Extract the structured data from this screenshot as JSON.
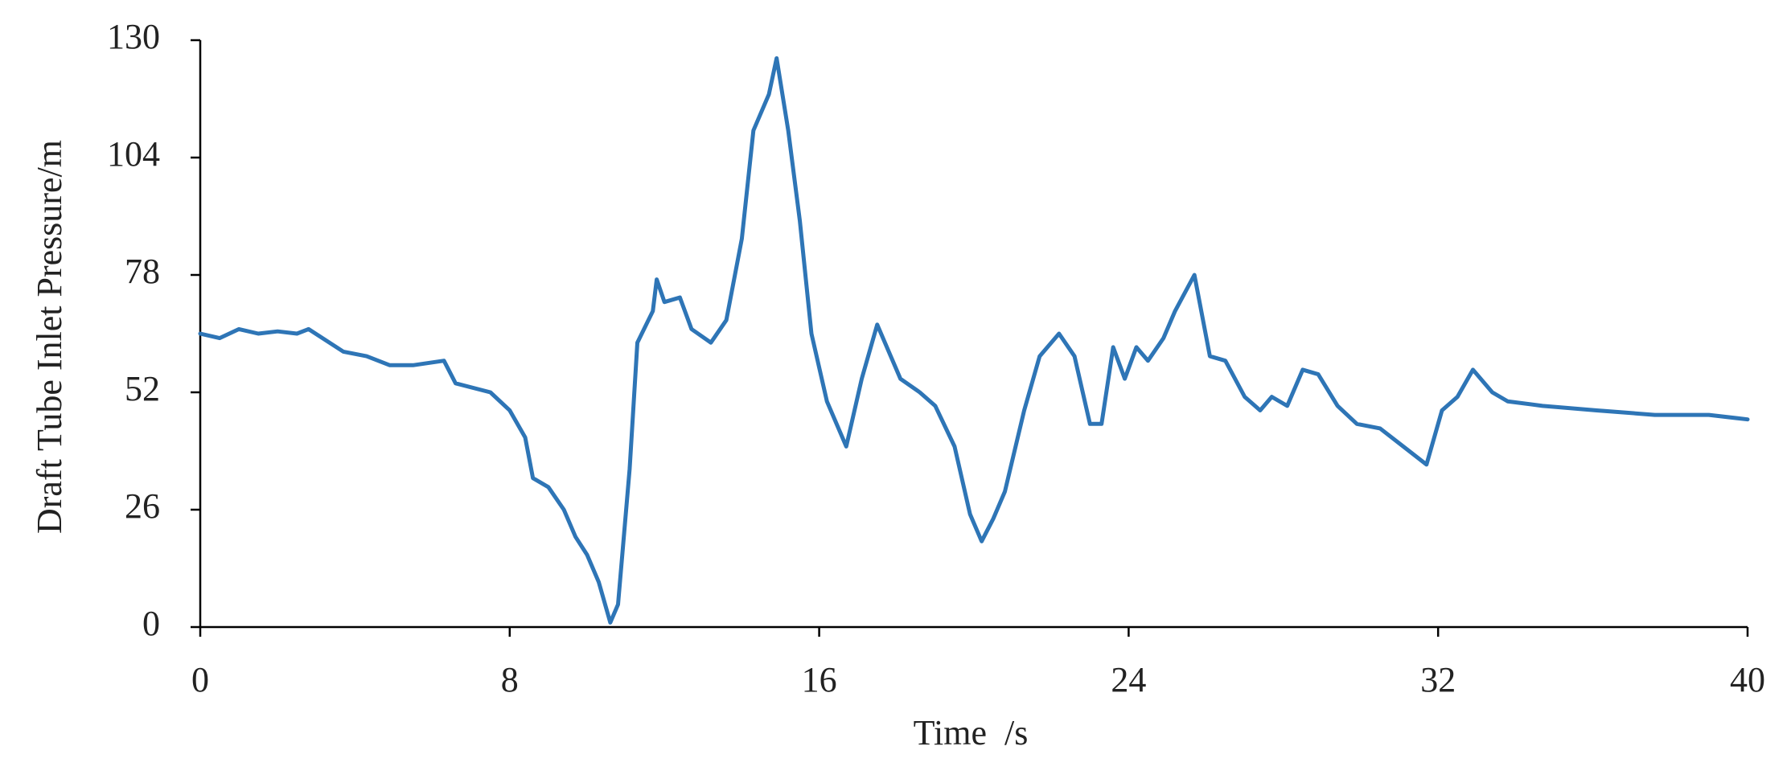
{
  "chart_data": {
    "type": "line",
    "xlabel": "Time  /s",
    "ylabel": "Draft Tube Inlet Pressure/m",
    "x": [
      0,
      0.5,
      1,
      1.5,
      2,
      2.5,
      2.8,
      3.7,
      4.3,
      4.9,
      5.5,
      6.3,
      6.6,
      7.5,
      8,
      8.4,
      8.6,
      9,
      9.4,
      9.7,
      10,
      10.3,
      10.6,
      10.8,
      11.1,
      11.3,
      11.7,
      11.8,
      12,
      12.4,
      12.7,
      13.2,
      13.6,
      14,
      14.3,
      14.7,
      14.9,
      15.2,
      15.5,
      15.8,
      16.2,
      16.7,
      17.1,
      17.5,
      17.7,
      18.1,
      18.6,
      19,
      19.5,
      19.9,
      20.2,
      20.5,
      20.8,
      21.3,
      21.7,
      22.2,
      22.6,
      23,
      23.3,
      23.6,
      23.9,
      24.2,
      24.5,
      24.9,
      25.2,
      25.7,
      26.1,
      26.5,
      27,
      27.4,
      27.7,
      28.1,
      28.5,
      28.9,
      29.4,
      29.9,
      30.5,
      31.1,
      31.7,
      32.1,
      32.5,
      32.9,
      33.4,
      33.8,
      34.7,
      36.1,
      37.6,
      39,
      40
    ],
    "series": [
      {
        "name": "Draft Tube Inlet Pressure",
        "color": "#2e75b6",
        "values": [
          65,
          64,
          66,
          65,
          65.5,
          65,
          66,
          61,
          60,
          58,
          58,
          59,
          54,
          52,
          48,
          42,
          33,
          31,
          26,
          20,
          16,
          10,
          1,
          5,
          35,
          63,
          70,
          77,
          72,
          73,
          66,
          63,
          68,
          86,
          110,
          118,
          126,
          110,
          90,
          65,
          50,
          40,
          55,
          67,
          63,
          55,
          52,
          49,
          40,
          25,
          19,
          24,
          30,
          48,
          60,
          65,
          60,
          45,
          45,
          62,
          55,
          62,
          59,
          64,
          70,
          78,
          60,
          59,
          51,
          48,
          51,
          49,
          57,
          56,
          49,
          45,
          44,
          40,
          36,
          48,
          51,
          57,
          52,
          50,
          49,
          48,
          47,
          47,
          46
        ]
      }
    ],
    "xlim": [
      0,
      40
    ],
    "xticks": [
      0,
      8,
      16,
      24,
      32,
      40
    ],
    "ylim": [
      0,
      130
    ],
    "yticks": [
      0,
      26,
      52,
      78,
      104,
      130
    ],
    "grid": false
  }
}
